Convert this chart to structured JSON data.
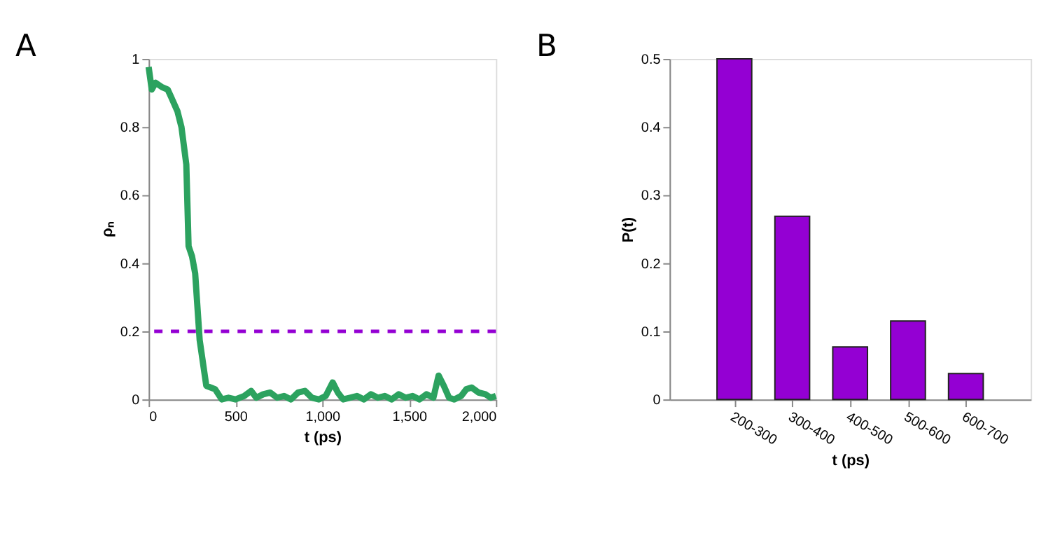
{
  "chart_data": [
    {
      "type": "line",
      "title": "A",
      "xlabel": "t (ps)",
      "ylabel": "ρₙ",
      "series": [
        {
          "color": "#2ca25f",
          "x": [
            0,
            18,
            40,
            77,
            110,
            128,
            166,
            189,
            217,
            230,
            250,
            268,
            294,
            332,
            383,
            421,
            460,
            500,
            550,
            590,
            620,
            660,
            700,
            740,
            780,
            820,
            860,
            900,
            940,
            980,
            1020,
            1060,
            1090,
            1120,
            1160,
            1200,
            1240,
            1280,
            1320,
            1360,
            1400,
            1440,
            1480,
            1520,
            1560,
            1600,
            1640,
            1670,
            1700,
            1730,
            1760,
            1800,
            1830,
            1860,
            1900,
            1940,
            1970,
            2000
          ],
          "values": [
            0.976,
            0.91,
            0.93,
            0.917,
            0.91,
            0.89,
            0.846,
            0.8,
            0.69,
            0.45,
            0.42,
            0.37,
            0.174,
            0.04,
            0.03,
            0.0,
            0.005,
            0.0,
            0.01,
            0.025,
            0.005,
            0.015,
            0.02,
            0.005,
            0.01,
            0.0,
            0.02,
            0.025,
            0.005,
            0.0,
            0.01,
            0.05,
            0.02,
            0.0,
            0.005,
            0.01,
            0.0,
            0.015,
            0.005,
            0.01,
            0.0,
            0.015,
            0.005,
            0.01,
            0.0,
            0.015,
            0.005,
            0.07,
            0.04,
            0.005,
            0.0,
            0.01,
            0.03,
            0.035,
            0.02,
            0.015,
            0.005,
            0.01
          ]
        }
      ],
      "xlim": [
        0,
        2000
      ],
      "ylim": [
        0,
        1
      ],
      "xticks": [
        0,
        500,
        {
          "value": 1000,
          "label": "1,000"
        },
        {
          "value": 1500,
          "label": "1,500"
        },
        {
          "value": 2000,
          "label": "2,000"
        }
      ],
      "yticks": [
        0,
        0.2,
        0.4,
        0.6,
        0.8,
        1
      ],
      "ref_lines": [
        {
          "axis": "y",
          "value": 0.2,
          "color": "#9400d3",
          "line_style": "dashed"
        }
      ],
      "grid": false
    },
    {
      "type": "bar",
      "title": "B",
      "xlabel": "t (ps)",
      "ylabel": "P(t)",
      "categories": [
        "200-300",
        "300-400",
        "400-500",
        "500-600",
        "600-700"
      ],
      "values": [
        0.5,
        0.269,
        0.077,
        0.115,
        0.038
      ],
      "color": "#9400d3",
      "ylim": [
        0,
        0.5
      ],
      "yticks": [
        0,
        0.1,
        0.2,
        0.3,
        0.4,
        0.5
      ],
      "grid": false
    }
  ]
}
